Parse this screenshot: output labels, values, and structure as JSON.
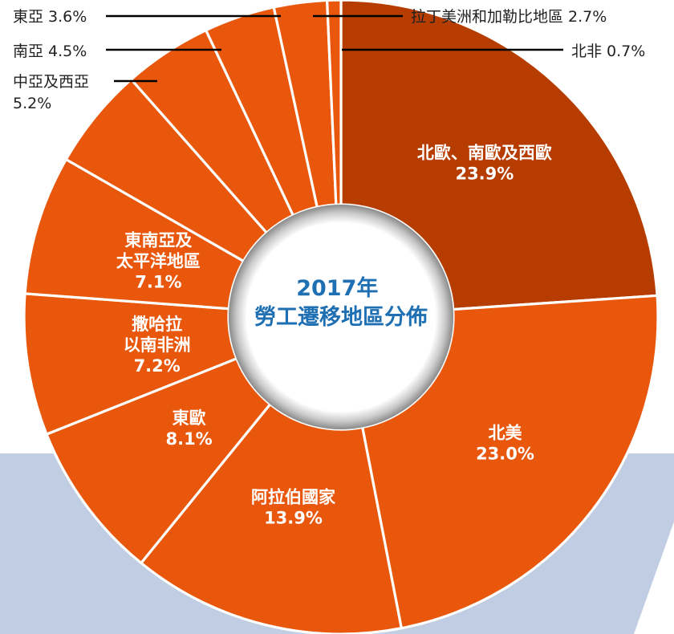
{
  "chart_data": {
    "type": "pie",
    "variant": "donut",
    "title": [
      "2017年",
      "勞工遷移地區分佈"
    ],
    "unit": "%",
    "slices": [
      {
        "name": "北歐、南歐及西歐",
        "label_lines": [
          "北歐、南歐及西歐"
        ],
        "value": 23.9,
        "color": "#b63c00",
        "label_position": "inside"
      },
      {
        "name": "北美",
        "label_lines": [
          "北美"
        ],
        "value": 23.0,
        "color": "#e9570c",
        "label_position": "inside"
      },
      {
        "name": "阿拉伯國家",
        "label_lines": [
          "阿拉伯國家"
        ],
        "value": 13.9,
        "color": "#e9570c",
        "label_position": "inside"
      },
      {
        "name": "東歐",
        "label_lines": [
          "東歐"
        ],
        "value": 8.1,
        "color": "#e9570c",
        "label_position": "inside"
      },
      {
        "name": "撒哈拉以南非洲",
        "label_lines": [
          "撒哈拉",
          "以南非洲"
        ],
        "value": 7.2,
        "color": "#e9570c",
        "label_position": "inside"
      },
      {
        "name": "東南亞及太平洋地區",
        "label_lines": [
          "東南亞及",
          "太平洋地區"
        ],
        "value": 7.1,
        "color": "#e9570c",
        "label_position": "inside"
      },
      {
        "name": "中亞及西亞",
        "label_lines": [
          "中亞及西亞"
        ],
        "value": 5.2,
        "color": "#e9570c",
        "label_position": "outside"
      },
      {
        "name": "南亞",
        "label_lines": [
          "南亞"
        ],
        "value": 4.5,
        "color": "#e9570c",
        "label_position": "outside"
      },
      {
        "name": "東亞",
        "label_lines": [
          "東亞"
        ],
        "value": 3.6,
        "color": "#e9570c",
        "label_position": "outside"
      },
      {
        "name": "拉丁美洲和加勒比地區",
        "label_lines": [
          "拉丁美洲和加勒比地區"
        ],
        "value": 2.7,
        "color": "#e9570c",
        "label_position": "outside"
      },
      {
        "name": "北非",
        "label_lines": [
          "北非"
        ],
        "value": 0.7,
        "color": "#e9570c",
        "label_position": "outside"
      }
    ],
    "legend": "none"
  },
  "colors": {
    "background_band": "#c0cde3",
    "slice_separator": "#ffffff",
    "inside_label_text": "#ffffff",
    "outside_label_text": "#222222",
    "leader_line": "#000000",
    "center_title_text": "#1f6fb3",
    "hole_fill": "#ffffff"
  }
}
